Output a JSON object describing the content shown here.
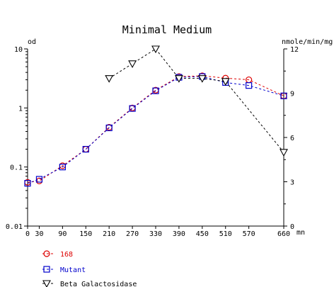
{
  "chart_data": {
    "type": "line",
    "title": "Minimal Medium",
    "left_axis": {
      "label": "od",
      "scale": "log",
      "range": [
        0.01,
        10
      ],
      "ticks": [
        "10",
        "1",
        "0.1",
        "0.01"
      ]
    },
    "right_axis": {
      "label": "nmole/min/mg",
      "scale": "linear",
      "range": [
        0,
        12
      ],
      "ticks": [
        "12",
        "9",
        "6",
        "3",
        "0"
      ]
    },
    "x_axis": {
      "label": "mn",
      "range": [
        0,
        660
      ],
      "ticks": [
        "0",
        "30",
        "90",
        "150",
        "210",
        "270",
        "330",
        "390",
        "450",
        "510",
        "570",
        "660"
      ]
    },
    "grid": false,
    "series": [
      {
        "name": "168",
        "axis": "left",
        "color": "#dd0000",
        "marker": "circle",
        "x": [
          0,
          30,
          90,
          150,
          210,
          270,
          330,
          390,
          450,
          510,
          570,
          660
        ],
        "y": [
          0.055,
          0.058,
          0.105,
          0.2,
          0.47,
          1.0,
          2.0,
          3.4,
          3.5,
          3.2,
          3.0,
          1.6
        ]
      },
      {
        "name": "Mutant",
        "axis": "left",
        "color": "#0000cc",
        "marker": "square",
        "x": [
          0,
          30,
          90,
          150,
          210,
          270,
          330,
          390,
          450,
          510,
          570,
          660
        ],
        "y": [
          0.053,
          0.062,
          0.1,
          0.2,
          0.46,
          0.98,
          1.95,
          3.3,
          3.4,
          2.7,
          2.4,
          1.6
        ]
      },
      {
        "name": "Beta Galactosidase",
        "axis": "right",
        "color": "#000000",
        "marker": "triangle-down",
        "x": [
          210,
          270,
          330,
          390,
          450,
          510,
          660
        ],
        "y": [
          10.0,
          11.0,
          12.0,
          10.0,
          10.0,
          9.8,
          5.0
        ]
      }
    ],
    "legend_placement": "bottom-left"
  }
}
